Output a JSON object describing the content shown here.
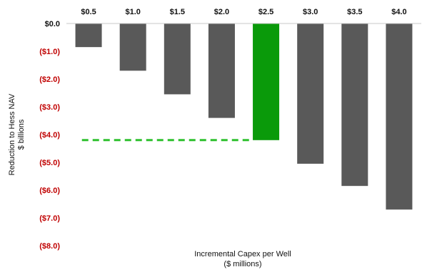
{
  "chart_data": {
    "type": "bar",
    "categories": [
      "$0.5",
      "$1.0",
      "$1.5",
      "$2.0",
      "$2.5",
      "$3.0",
      "$3.5",
      "$4.0"
    ],
    "values": [
      -0.85,
      -1.7,
      -2.55,
      -3.4,
      -4.2,
      -5.05,
      -5.85,
      -6.7
    ],
    "highlight_category": "$2.5",
    "reference_line_value": -4.2,
    "ylim": [
      -8.0,
      0.0
    ],
    "y_ticks": [
      {
        "value": 0.0,
        "label": "$0.0"
      },
      {
        "value": -1.0,
        "label": "($1.0)"
      },
      {
        "value": -2.0,
        "label": "($2.0)"
      },
      {
        "value": -3.0,
        "label": "($3.0)"
      },
      {
        "value": -4.0,
        "label": "($4.0)"
      },
      {
        "value": -5.0,
        "label": "($5.0)"
      },
      {
        "value": -6.0,
        "label": "($6.0)"
      },
      {
        "value": -7.0,
        "label": "($7.0)"
      },
      {
        "value": -8.0,
        "label": "($8.0)"
      }
    ],
    "ylabel_line1": "Reduction to Hess NAV",
    "ylabel_line2": "$ billions",
    "xlabel_line1": "Incremental Capex per Well",
    "xlabel_line2": "($ millions)",
    "x_tick_position": "top",
    "grid": false,
    "colors": {
      "bar": "#595959",
      "highlight": "#0a9a0a",
      "reference_line": "#2ec02e",
      "negative_tick": "#c00000",
      "zero_tick": "#111111"
    }
  }
}
